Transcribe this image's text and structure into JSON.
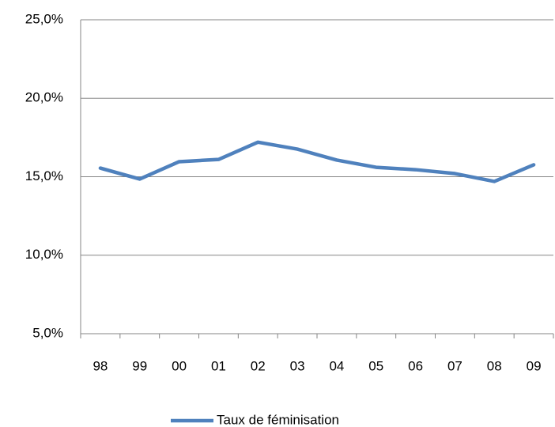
{
  "chart_data": {
    "type": "line",
    "categories": [
      "98",
      "99",
      "00",
      "01",
      "02",
      "03",
      "04",
      "05",
      "06",
      "07",
      "08",
      "09"
    ],
    "series": [
      {
        "name": "Taux de féminisation",
        "color": "#4f81bd",
        "values": [
          15.55,
          14.85,
          15.96,
          16.1,
          17.2,
          16.76,
          16.06,
          15.6,
          15.45,
          15.2,
          14.7,
          15.76
        ]
      }
    ],
    "ylim": [
      5,
      25
    ],
    "yticks": [
      {
        "value": 5,
        "label": "5,0%"
      },
      {
        "value": 10,
        "label": "10,0%"
      },
      {
        "value": 15,
        "label": "15,0%"
      },
      {
        "value": 20,
        "label": "20,0%"
      },
      {
        "value": 25,
        "label": "25,0%"
      }
    ],
    "grid": true,
    "legend": "bottom"
  }
}
